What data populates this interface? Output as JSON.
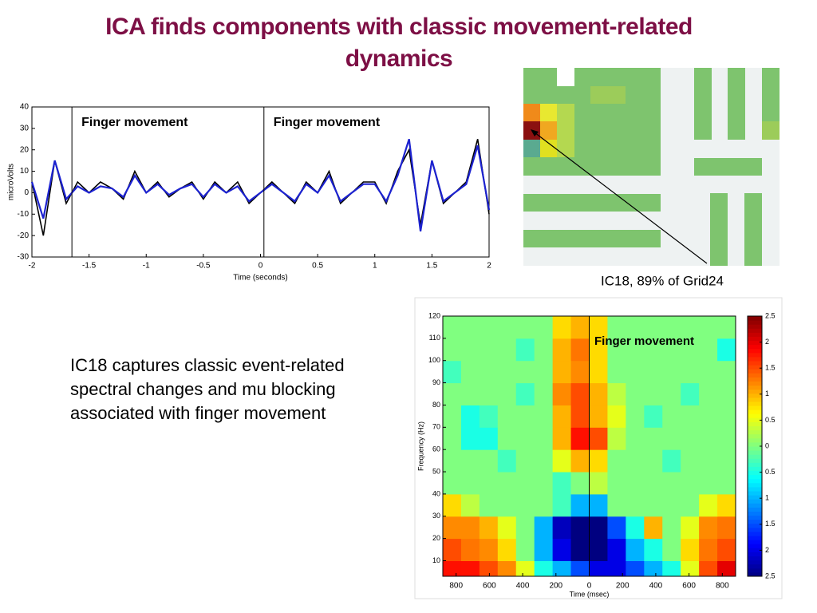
{
  "title": "ICA finds components with classic movement-related dynamics",
  "chart_data": [
    {
      "type": "line",
      "ylabel": "microVolts",
      "xlabel": "Time (seconds)",
      "annotations": [
        "Finger movement",
        "Finger movement"
      ],
      "event_x": [
        -1.65,
        0.03
      ],
      "x": [
        -2,
        -1.9,
        -1.8,
        -1.7,
        -1.6,
        -1.5,
        -1.4,
        -1.3,
        -1.2,
        -1.1,
        -1,
        -0.9,
        -0.8,
        -0.7,
        -0.6,
        -0.5,
        -0.4,
        -0.3,
        -0.2,
        -0.1,
        0,
        0.1,
        0.2,
        0.3,
        0.4,
        0.5,
        0.6,
        0.7,
        0.8,
        0.9,
        1,
        1.1,
        1.2,
        1.3,
        1.4,
        1.5,
        1.6,
        1.7,
        1.8,
        1.9,
        2
      ],
      "series": [
        {
          "color": "#000000",
          "values": [
            5,
            -20,
            15,
            -5,
            5,
            0,
            5,
            2,
            -3,
            10,
            0,
            5,
            -2,
            2,
            5,
            -3,
            5,
            0,
            5,
            -5,
            0,
            5,
            0,
            -5,
            5,
            0,
            10,
            -5,
            0,
            5,
            5,
            -5,
            10,
            20,
            -15,
            15,
            -5,
            0,
            5,
            25,
            -10
          ]
        },
        {
          "color": "#1c22d0",
          "values": [
            5,
            -12,
            15,
            -3,
            3,
            0,
            3,
            2,
            -2,
            8,
            0,
            4,
            -1,
            2,
            4,
            -2,
            4,
            0,
            3,
            -4,
            0,
            4,
            0,
            -4,
            4,
            0,
            8,
            -4,
            0,
            4,
            4,
            -4,
            8,
            25,
            -18,
            15,
            -4,
            0,
            4,
            22,
            -8
          ]
        }
      ],
      "xlim": [
        -2,
        2
      ],
      "ylim": [
        -30,
        40
      ],
      "xticks": [
        -2,
        -1.5,
        -1,
        -0.5,
        0,
        0.5,
        1,
        1.5,
        2
      ],
      "yticks": [
        40,
        30,
        20,
        10,
        0,
        -10,
        -20,
        -30
      ]
    },
    {
      "type": "heatmap",
      "ylabel": "Frequency (Hz)",
      "xlabel": "Time (msec)",
      "annotation": "Finger movement",
      "event_x": [
        0
      ],
      "x_edges": [
        -880,
        -770,
        -660,
        -550,
        -440,
        -330,
        -220,
        -110,
        0,
        110,
        220,
        330,
        440,
        550,
        660,
        770,
        880
      ],
      "y_edges": [
        3,
        10,
        20,
        30,
        40,
        50,
        60,
        70,
        80,
        90,
        100,
        110,
        120
      ],
      "values": [
        [
          1.8,
          1.8,
          1.5,
          1.2,
          0.5,
          -0.5,
          -1,
          -1.5,
          -2,
          -2,
          -1.5,
          -1,
          -0.5,
          0.5,
          1.5,
          2
        ],
        [
          1.5,
          1.3,
          1.2,
          0.8,
          0,
          -1,
          -2,
          -2.5,
          -2.5,
          -2,
          -1,
          -0.5,
          0,
          0.8,
          1.3,
          1.5
        ],
        [
          1.2,
          1.2,
          1,
          0.5,
          0,
          -1,
          -2.2,
          -2.5,
          -2.5,
          -1.5,
          -0.5,
          1,
          0,
          0.5,
          1.2,
          1.3
        ],
        [
          0.8,
          0.3,
          0,
          0,
          0,
          0,
          -0.3,
          -1,
          -1,
          0,
          0,
          0,
          0,
          0,
          0.5,
          0.8
        ],
        [
          0,
          0,
          0,
          0,
          0,
          0,
          -0.3,
          0,
          0.3,
          0,
          0,
          0,
          0,
          0,
          0,
          0
        ],
        [
          0,
          0,
          0,
          -0.3,
          0,
          0,
          0.5,
          1,
          0.8,
          0,
          0,
          0,
          -0.3,
          0,
          0,
          0
        ],
        [
          0,
          -0.5,
          -0.5,
          0,
          0,
          0,
          1,
          1.8,
          1.5,
          0.3,
          0,
          0,
          0,
          0,
          0,
          0
        ],
        [
          0,
          -0.5,
          -0.3,
          0,
          0,
          0,
          1,
          1.5,
          1,
          0.5,
          0,
          -0.3,
          0,
          0,
          0,
          0
        ],
        [
          0,
          0,
          0,
          0,
          -0.3,
          0,
          1.2,
          1.5,
          1,
          0.3,
          0,
          0,
          0,
          -0.3,
          0,
          0
        ],
        [
          -0.3,
          0,
          0,
          0,
          0,
          0,
          1,
          1.2,
          0.8,
          0,
          0,
          0,
          0,
          0,
          0,
          0
        ],
        [
          0,
          0,
          0,
          0,
          -0.3,
          0,
          1,
          1.3,
          0.8,
          0,
          0,
          0,
          0,
          0,
          0,
          -0.5
        ],
        [
          0,
          0,
          0,
          0,
          0,
          0,
          0.8,
          1,
          0.8,
          0,
          0,
          0,
          0,
          0,
          0,
          0
        ]
      ],
      "xlim": [
        -880,
        880
      ],
      "ylim": [
        3,
        120
      ],
      "clim": [
        -2.5,
        2.5
      ],
      "xticks": [
        {
          "value": -800,
          "label": "800"
        },
        {
          "value": -600,
          "label": "600"
        },
        {
          "value": -400,
          "label": "400"
        },
        {
          "value": -200,
          "label": "200"
        },
        0,
        200,
        400,
        600,
        800
      ],
      "yticks": [
        10,
        20,
        30,
        40,
        50,
        60,
        70,
        80,
        90,
        100,
        110,
        120
      ],
      "cticks": [
        2.5,
        2,
        1.5,
        1,
        0.5,
        0,
        {
          "value": -0.5,
          "label": "0.5"
        },
        {
          "value": -1,
          "label": "1"
        },
        {
          "value": -1.5,
          "label": "1.5"
        },
        {
          "value": -2,
          "label": "2"
        },
        {
          "value": -2.5,
          "label": "2.5"
        }
      ]
    }
  ],
  "grid_caption": "IC18, 89% of Grid24",
  "body_text": "IC18 captures classic event-related spectral changes and mu blocking associated with finger movement"
}
